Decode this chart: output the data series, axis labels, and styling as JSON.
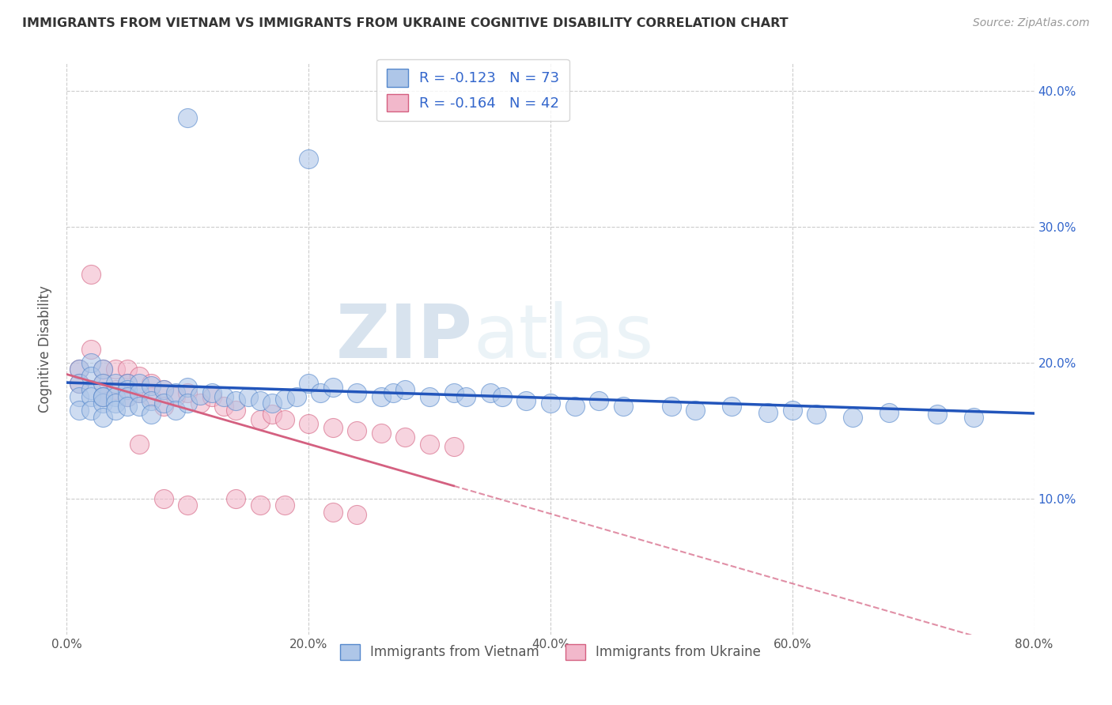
{
  "title": "IMMIGRANTS FROM VIETNAM VS IMMIGRANTS FROM UKRAINE COGNITIVE DISABILITY CORRELATION CHART",
  "source": "Source: ZipAtlas.com",
  "ylabel": "Cognitive Disability",
  "legend_bottom": [
    "Immigrants from Vietnam",
    "Immigrants from Ukraine"
  ],
  "series": [
    {
      "name": "Immigrants from Vietnam",
      "color": "#aec6e8",
      "edge_color": "#5588cc",
      "R": -0.123,
      "N": 73,
      "line_color": "#2255bb",
      "line_style": "-"
    },
    {
      "name": "Immigrants from Ukraine",
      "color": "#f2b8cb",
      "edge_color": "#d46080",
      "R": -0.164,
      "N": 42,
      "line_color": "#d46080",
      "line_style": "--"
    }
  ],
  "xlim": [
    0.0,
    0.8
  ],
  "ylim": [
    0.0,
    0.42
  ],
  "xticks": [
    0.0,
    0.2,
    0.4,
    0.6,
    0.8
  ],
  "xtick_labels": [
    "0.0%",
    "20.0%",
    "40.0%",
    "60.0%",
    "80.0%"
  ],
  "yticks": [
    0.1,
    0.2,
    0.3,
    0.4
  ],
  "ytick_labels": [
    "10.0%",
    "20.0%",
    "30.0%",
    "40.0%"
  ],
  "watermark_zip": "ZIP",
  "watermark_atlas": "atlas",
  "background_color": "#ffffff",
  "grid_color": "#cccccc",
  "vietnam_x": [
    0.01,
    0.01,
    0.01,
    0.01,
    0.02,
    0.02,
    0.02,
    0.02,
    0.02,
    0.03,
    0.03,
    0.03,
    0.03,
    0.03,
    0.03,
    0.04,
    0.04,
    0.04,
    0.04,
    0.05,
    0.05,
    0.05,
    0.05,
    0.06,
    0.06,
    0.06,
    0.07,
    0.07,
    0.07,
    0.08,
    0.08,
    0.09,
    0.09,
    0.1,
    0.1,
    0.11,
    0.12,
    0.13,
    0.14,
    0.15,
    0.16,
    0.17,
    0.18,
    0.19,
    0.2,
    0.21,
    0.22,
    0.24,
    0.26,
    0.27,
    0.28,
    0.3,
    0.32,
    0.33,
    0.35,
    0.36,
    0.38,
    0.4,
    0.42,
    0.44,
    0.46,
    0.5,
    0.52,
    0.55,
    0.58,
    0.6,
    0.62,
    0.65,
    0.68,
    0.72,
    0.75,
    0.1,
    0.2
  ],
  "vietnam_y": [
    0.195,
    0.185,
    0.175,
    0.165,
    0.2,
    0.19,
    0.18,
    0.175,
    0.165,
    0.195,
    0.185,
    0.175,
    0.17,
    0.16,
    0.175,
    0.185,
    0.175,
    0.17,
    0.165,
    0.185,
    0.18,
    0.175,
    0.168,
    0.185,
    0.178,
    0.168,
    0.183,
    0.172,
    0.162,
    0.18,
    0.17,
    0.178,
    0.165,
    0.182,
    0.17,
    0.176,
    0.178,
    0.175,
    0.172,
    0.175,
    0.172,
    0.17,
    0.173,
    0.175,
    0.185,
    0.178,
    0.182,
    0.178,
    0.175,
    0.178,
    0.18,
    0.175,
    0.178,
    0.175,
    0.178,
    0.175,
    0.172,
    0.17,
    0.168,
    0.172,
    0.168,
    0.168,
    0.165,
    0.168,
    0.163,
    0.165,
    0.162,
    0.16,
    0.163,
    0.162,
    0.16,
    0.38,
    0.35
  ],
  "ukraine_x": [
    0.01,
    0.01,
    0.02,
    0.02,
    0.03,
    0.03,
    0.03,
    0.04,
    0.04,
    0.05,
    0.05,
    0.05,
    0.06,
    0.06,
    0.07,
    0.07,
    0.08,
    0.08,
    0.09,
    0.1,
    0.11,
    0.12,
    0.13,
    0.14,
    0.16,
    0.17,
    0.18,
    0.2,
    0.22,
    0.24,
    0.26,
    0.28,
    0.3,
    0.32,
    0.14,
    0.16,
    0.18,
    0.22,
    0.24,
    0.06,
    0.08,
    0.1
  ],
  "ukraine_y": [
    0.195,
    0.185,
    0.265,
    0.21,
    0.195,
    0.185,
    0.175,
    0.195,
    0.18,
    0.195,
    0.185,
    0.175,
    0.19,
    0.178,
    0.185,
    0.175,
    0.18,
    0.168,
    0.175,
    0.178,
    0.17,
    0.175,
    0.168,
    0.165,
    0.158,
    0.162,
    0.158,
    0.155,
    0.152,
    0.15,
    0.148,
    0.145,
    0.14,
    0.138,
    0.1,
    0.095,
    0.095,
    0.09,
    0.088,
    0.14,
    0.1,
    0.095
  ]
}
